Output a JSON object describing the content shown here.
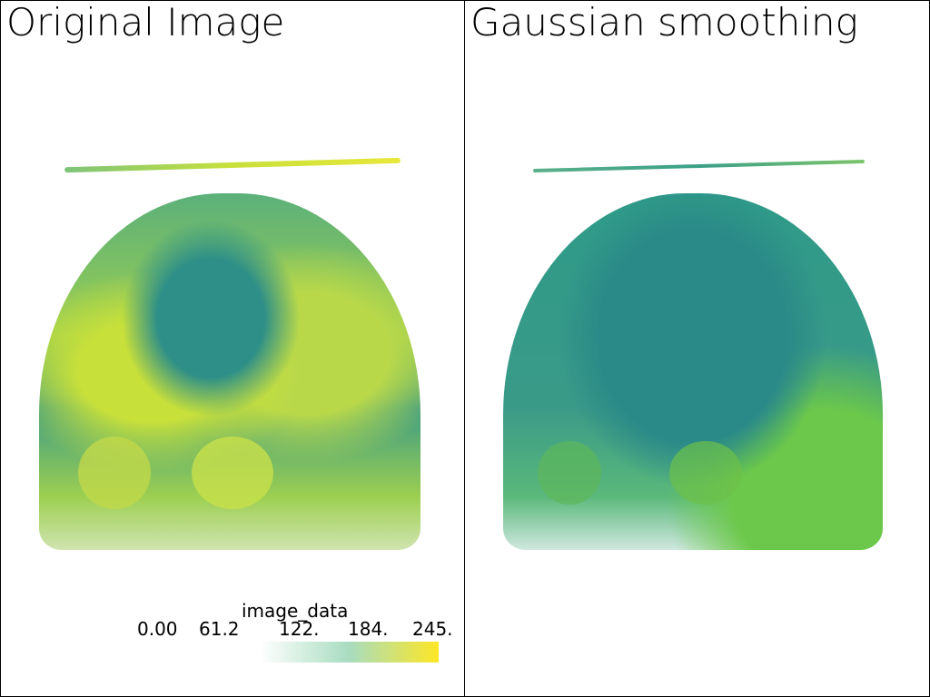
{
  "panels": [
    {
      "title": "Original Image"
    },
    {
      "title": "Gaussian smoothing"
    }
  ],
  "scalar_bar": {
    "title": "image_data",
    "ticks": [
      "0.00",
      "61.2",
      "122.",
      "184.",
      "245."
    ],
    "colormap": "viridis",
    "colors": [
      "#ffffff",
      "#a8dcc0",
      "#fde725"
    ]
  },
  "colors": {
    "teal": "#2a9a8a",
    "yellow": "#c8e03a",
    "green": "#6cc84a",
    "border": "#000000"
  }
}
